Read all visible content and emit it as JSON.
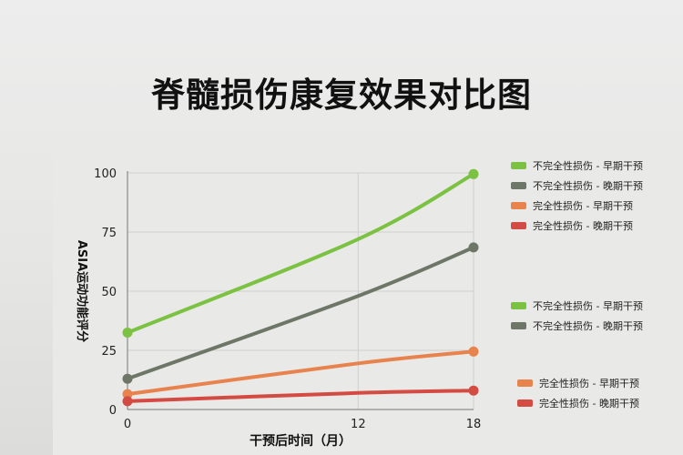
{
  "chart_data": {
    "type": "line",
    "title": "脊髓损伤康复效果对比图",
    "xlabel": "干预后时间（月）",
    "ylabel": "ASIA运动功能评分",
    "x": [
      0,
      12,
      18
    ],
    "x_ticks": [
      "0",
      "12",
      "18"
    ],
    "y_ticks": [
      "0",
      "25",
      "50",
      "75",
      "100"
    ],
    "xlim": [
      0,
      18
    ],
    "ylim": [
      0,
      100
    ],
    "grid": true,
    "legend_position": "right",
    "series": [
      {
        "name": "不完全性损伤 - 早期干预",
        "values": [
          32.5,
          72,
          99.5
        ],
        "color": "#7cc242"
      },
      {
        "name": "不完全性损伤 - 晚期干预",
        "values": [
          13,
          48,
          68.5
        ],
        "color": "#6e7767"
      },
      {
        "name": "完全性损伤 - 早期干预",
        "values": [
          6.5,
          19.5,
          24.5
        ],
        "color": "#e8834e"
      },
      {
        "name": "完全性损伤 - 晚期干预",
        "values": [
          3.5,
          7,
          8
        ],
        "color": "#d44b44"
      }
    ],
    "legend_blocks": [
      [
        "不完全性损伤 - 早期干预",
        "不完全性损伤 - 晚期干预",
        "完全性损伤 - 早期干预",
        "完全性损伤 - 晚期干预"
      ],
      [
        "不完全性损伤 - 早期干预",
        "不完全性损伤 - 晚期干预"
      ],
      [
        "完全性损伤 - 早期干预",
        "完全性损伤 - 晚期干预"
      ]
    ],
    "legend_colors": [
      [
        "#7cc242",
        "#6e7767",
        "#e8834e",
        "#d44b44"
      ],
      [
        "#7cc242",
        "#6e7767"
      ],
      [
        "#e8834e",
        "#d44b44"
      ]
    ]
  }
}
